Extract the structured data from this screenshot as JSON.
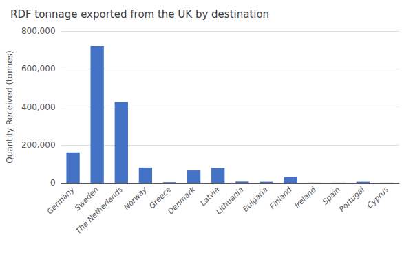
{
  "chart_data": {
    "type": "bar",
    "title": "RDF tonnage exported from the UK by destination",
    "categories": [
      "Germany",
      "Sweden",
      "The Netherlands",
      "Norway",
      "Greece",
      "Denmark",
      "Latvia",
      "Lithuania",
      "Bulgaria",
      "Finland",
      "Ireland",
      "Spain",
      "Portugal",
      "Cyprus"
    ],
    "values": [
      160000,
      720000,
      425000,
      80000,
      3000,
      65000,
      78000,
      6000,
      5000,
      30000,
      500,
      500,
      5000,
      500
    ],
    "color": "#4472C4",
    "ylabel": "Quantity Received (tonnes)",
    "ylim": [
      0,
      800000
    ],
    "yticks": [
      0,
      {
        "value": 200000,
        "label": "200,000"
      },
      {
        "value": 400000,
        "label": "400,000"
      },
      {
        "value": 600000,
        "label": "600,000"
      },
      {
        "value": 800000,
        "label": "800,000"
      }
    ],
    "grid": true
  }
}
